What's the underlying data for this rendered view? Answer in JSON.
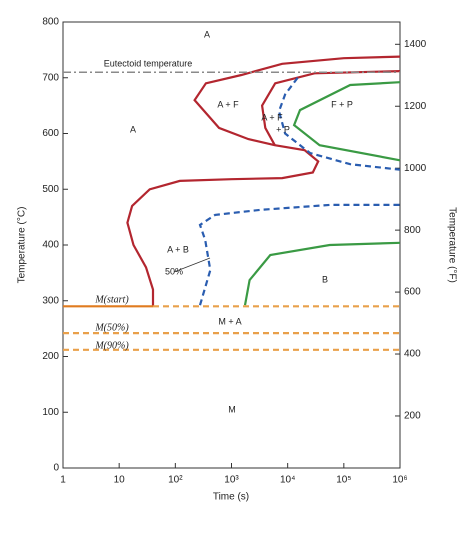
{
  "chart_data": {
    "type": "line",
    "xscale": "log",
    "xlabel": "Time (s)",
    "ylabel": "Temperature (°C)",
    "y2label": "Temperature (°F)",
    "xlim": [
      1,
      1000000
    ],
    "xticks": [
      1,
      10,
      {
        "value": 100,
        "label": "10²"
      },
      {
        "value": 1000,
        "label": "10³"
      },
      {
        "value": 10000,
        "label": "10⁴"
      },
      {
        "value": 100000,
        "label": "10⁵"
      },
      {
        "value": 1000000,
        "label": "10⁶"
      }
    ],
    "ylim": [
      0,
      800
    ],
    "yticks": [
      0,
      100,
      200,
      300,
      400,
      500,
      600,
      700,
      800
    ],
    "y2lim": [
      32,
      1472
    ],
    "y2ticks": [
      200,
      400,
      600,
      800,
      1000,
      1200,
      1400
    ],
    "grid": false,
    "series": [
      {
        "color": "#b3262f",
        "style": "solid",
        "x": [
          40,
          40,
          30,
          18,
          14,
          17,
          35,
          120,
          1000,
          8000,
          28000,
          35000,
          20000,
          5900,
          2000,
          600,
          220,
          350,
          1500,
          8000,
          100000,
          1000000
        ],
        "values": [
          290,
          320,
          360,
          400,
          440,
          470,
          500,
          515,
          518,
          520,
          530,
          550,
          570,
          579,
          590,
          610,
          660,
          690,
          705,
          725,
          735,
          738
        ]
      },
      {
        "color": "#b3262f",
        "style": "solid",
        "x": [
          5900,
          4000,
          3500,
          6000,
          30000,
          1000000
        ],
        "values": [
          579,
          610,
          650,
          690,
          708,
          712
        ]
      },
      {
        "color": "#2a5db0",
        "style": "dashed",
        "x": [
          15000,
          9000,
          7000,
          9000,
          25000,
          130000,
          1000000
        ],
        "values": [
          700,
          670,
          640,
          600,
          565,
          545,
          535
        ]
      },
      {
        "color": "#2a5db0",
        "style": "dashed",
        "x": [
          275,
          420,
          340,
          275,
          510,
          3200,
          56000,
          1000000
        ],
        "values": [
          292,
          355,
          409,
          436,
          454,
          463,
          472,
          472
        ]
      },
      {
        "color": "#3a9a44",
        "style": "solid",
        "x": [
          1000000,
          130000,
          16600,
          13000,
          37000,
          1000000
        ],
        "values": [
          692,
          687,
          642,
          615,
          579,
          552
        ]
      },
      {
        "color": "#3a9a44",
        "style": "solid",
        "x": [
          1740,
          2100,
          4900,
          56000,
          1000000
        ],
        "values": [
          292,
          337,
          382,
          400,
          404
        ]
      },
      {
        "color": "#8a8a8a",
        "style": "dashdot",
        "x": [
          1,
          1000000
        ],
        "values": [
          710,
          710
        ]
      },
      {
        "color": "#e07b1f",
        "style": "solid",
        "x": [
          1,
          40
        ],
        "values": [
          290,
          290
        ]
      },
      {
        "color": "#e9a04a",
        "style": "dashed",
        "x": [
          40,
          1000000
        ],
        "values": [
          290,
          290
        ]
      },
      {
        "color": "#e9a04a",
        "style": "dashed",
        "x": [
          1,
          1000000
        ],
        "values": [
          242,
          242
        ]
      },
      {
        "color": "#e9a04a",
        "style": "dashed",
        "x": [
          1,
          1000000
        ],
        "values": [
          212,
          212
        ]
      }
    ],
    "annotations": [
      "A",
      "A",
      "A + F",
      "A + F",
      "+ P",
      "F + P",
      "A + B",
      "50%",
      "B",
      "M + A",
      "M",
      "Eutectoid temperature",
      "M(start)",
      "M(50%)",
      "M(90%)"
    ]
  }
}
